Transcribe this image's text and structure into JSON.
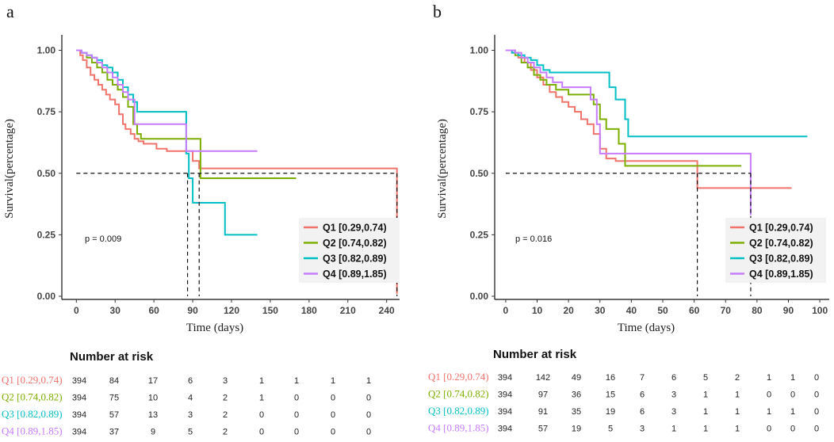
{
  "colors": {
    "Q1": "#F0736C",
    "Q2": "#7CAE00",
    "Q3": "#00BFC4",
    "Q4": "#C77CFF"
  },
  "chart_data": [
    {
      "panel": "a",
      "type": "line",
      "subtype": "kaplan-meier",
      "xlabel": "Time (days)",
      "ylabel": "Survival(percentage)",
      "xlim": [
        -10,
        250
      ],
      "ylim": [
        0,
        1.05
      ],
      "xticks": [
        0,
        30,
        60,
        90,
        120,
        150,
        180,
        210,
        240
      ],
      "yticks": [
        0,
        0.25,
        0.5,
        0.75,
        1
      ],
      "ytick_labels": [
        "0.00",
        "0.25",
        "0.50",
        "0.75",
        "1.00"
      ],
      "pvalue": "p = 0.009",
      "median_line": {
        "y": 0.5,
        "x_end": 248,
        "medians": [
          86,
          95,
          248
        ]
      },
      "series": [
        {
          "name": "Q1 [0.29,0.74)",
          "key": "Q1",
          "x": [
            0,
            3,
            5,
            8,
            11,
            14,
            17,
            20,
            23,
            26,
            30,
            33,
            36,
            38,
            42,
            45,
            48,
            52,
            62,
            70,
            85,
            90,
            95,
            248,
            248
          ],
          "y": [
            1,
            0.98,
            0.96,
            0.93,
            0.9,
            0.88,
            0.86,
            0.84,
            0.82,
            0.8,
            0.78,
            0.74,
            0.7,
            0.68,
            0.66,
            0.64,
            0.63,
            0.62,
            0.6,
            0.59,
            0.59,
            0.55,
            0.52,
            0.52,
            0.01
          ]
        },
        {
          "name": "Q2 [0.74,0.82)",
          "key": "Q2",
          "x": [
            0,
            4,
            8,
            12,
            16,
            20,
            24,
            28,
            32,
            36,
            40,
            44,
            47,
            50,
            55,
            60,
            70,
            80,
            94,
            96,
            170
          ],
          "y": [
            1,
            0.99,
            0.97,
            0.95,
            0.93,
            0.91,
            0.88,
            0.86,
            0.84,
            0.81,
            0.77,
            0.7,
            0.66,
            0.64,
            0.64,
            0.64,
            0.64,
            0.64,
            0.64,
            0.48,
            0.48
          ]
        },
        {
          "name": "Q3 [0.82,0.89)",
          "key": "Q3",
          "x": [
            0,
            4,
            8,
            12,
            16,
            20,
            24,
            28,
            32,
            36,
            40,
            44,
            47,
            60,
            70,
            80,
            85,
            87,
            90,
            95,
            105,
            110,
            115,
            120,
            140
          ],
          "y": [
            1,
            0.99,
            0.98,
            0.97,
            0.96,
            0.94,
            0.93,
            0.91,
            0.88,
            0.85,
            0.82,
            0.79,
            0.75,
            0.75,
            0.75,
            0.75,
            0.58,
            0.48,
            0.38,
            0.38,
            0.38,
            0.38,
            0.25,
            0.25,
            0.25
          ]
        },
        {
          "name": "Q4 [0.89,1.85)",
          "key": "Q4",
          "x": [
            0,
            4,
            8,
            12,
            16,
            20,
            24,
            28,
            32,
            36,
            40,
            45,
            50,
            60,
            70,
            80,
            85,
            90,
            100,
            120,
            140
          ],
          "y": [
            1,
            0.99,
            0.98,
            0.97,
            0.95,
            0.93,
            0.91,
            0.89,
            0.86,
            0.83,
            0.8,
            0.7,
            0.7,
            0.7,
            0.7,
            0.7,
            0.59,
            0.59,
            0.59,
            0.59,
            0.59
          ]
        }
      ],
      "risk_table": {
        "title": "Number at risk",
        "rows": [
          {
            "key": "Q1",
            "label": "Q1 [0.29,0.74)",
            "values": [
              "394",
              "84",
              "17",
              "6",
              "3",
              "1",
              "1",
              "1",
              "1"
            ]
          },
          {
            "key": "Q2",
            "label": "Q2 [0.74,0.82)",
            "values": [
              "394",
              "75",
              "10",
              "4",
              "2",
              "1",
              "0",
              "0",
              "0"
            ]
          },
          {
            "key": "Q3",
            "label": "Q3 [0.82,0.89)",
            "values": [
              "394",
              "57",
              "13",
              "3",
              "2",
              "0",
              "0",
              "0",
              "0"
            ]
          },
          {
            "key": "Q4",
            "label": "Q4 [0.89,1.85)",
            "values": [
              "394",
              "37",
              "9",
              "5",
              "2",
              "0",
              "0",
              "0",
              "0"
            ]
          }
        ]
      }
    },
    {
      "panel": "b",
      "type": "line",
      "subtype": "kaplan-meier",
      "xlabel": "Time (days)",
      "ylabel": "Survival(percentage)",
      "xlim": [
        -3,
        103
      ],
      "ylim": [
        0,
        1.05
      ],
      "xticks": [
        0,
        10,
        20,
        30,
        40,
        50,
        60,
        70,
        80,
        90,
        100
      ],
      "yticks": [
        0,
        0.25,
        0.5,
        0.75,
        1
      ],
      "ytick_labels": [
        "0.00",
        "0.25",
        "0.50",
        "0.75",
        "1.00"
      ],
      "pvalue": "p = 0.016",
      "median_line": {
        "y": 0.5,
        "x_end": 78,
        "medians": [
          61,
          78
        ]
      },
      "series": [
        {
          "name": "Q1 [0.29,0.74)",
          "key": "Q1",
          "x": [
            0,
            2,
            4,
            6,
            8,
            10,
            12,
            14,
            16,
            18,
            20,
            22,
            24,
            26,
            28,
            30,
            32,
            35,
            40,
            45,
            50,
            55,
            60,
            61,
            63,
            91
          ],
          "y": [
            1,
            0.99,
            0.97,
            0.95,
            0.92,
            0.89,
            0.86,
            0.83,
            0.81,
            0.79,
            0.77,
            0.75,
            0.72,
            0.7,
            0.66,
            0.6,
            0.56,
            0.55,
            0.55,
            0.55,
            0.55,
            0.55,
            0.55,
            0.44,
            0.44,
            0.44
          ]
        },
        {
          "name": "Q2 [0.74,0.82)",
          "key": "Q2",
          "x": [
            0,
            3,
            5,
            7,
            9,
            11,
            13,
            16,
            20,
            25,
            28,
            30,
            32,
            34,
            36,
            38,
            40,
            45,
            50,
            60,
            70,
            75
          ],
          "y": [
            1,
            0.98,
            0.95,
            0.93,
            0.9,
            0.88,
            0.86,
            0.84,
            0.82,
            0.82,
            0.78,
            0.72,
            0.68,
            0.68,
            0.62,
            0.53,
            0.53,
            0.53,
            0.53,
            0.53,
            0.53,
            0.53
          ]
        },
        {
          "name": "Q3 [0.82,0.89)",
          "key": "Q3",
          "x": [
            0,
            2,
            4,
            6,
            8,
            10,
            12,
            14,
            16,
            18,
            20,
            25,
            30,
            33,
            35,
            36,
            38,
            39,
            40,
            50,
            60,
            70,
            80,
            96
          ],
          "y": [
            1,
            0.99,
            0.98,
            0.97,
            0.96,
            0.94,
            0.92,
            0.91,
            0.91,
            0.91,
            0.91,
            0.91,
            0.91,
            0.85,
            0.8,
            0.8,
            0.72,
            0.65,
            0.65,
            0.65,
            0.65,
            0.65,
            0.65,
            0.65
          ]
        },
        {
          "name": "Q4 [0.89,1.85)",
          "key": "Q4",
          "x": [
            0,
            3,
            5,
            7,
            9,
            11,
            13,
            15,
            18,
            22,
            25,
            27,
            29,
            30,
            32,
            35,
            40,
            50,
            60,
            70,
            78,
            78
          ],
          "y": [
            1,
            0.99,
            0.97,
            0.95,
            0.93,
            0.91,
            0.89,
            0.87,
            0.85,
            0.85,
            0.85,
            0.8,
            0.7,
            0.58,
            0.58,
            0.58,
            0.58,
            0.58,
            0.58,
            0.58,
            0.58,
            0.33
          ]
        }
      ],
      "risk_table": {
        "title": "Number at risk",
        "rows": [
          {
            "key": "Q1",
            "label": "Q1 [0.29,0.74)",
            "values": [
              "394",
              "142",
              "49",
              "16",
              "7",
              "6",
              "5",
              "2",
              "1",
              "1",
              "0"
            ]
          },
          {
            "key": "Q2",
            "label": "Q2 [0.74,0.82)",
            "values": [
              "394",
              "97",
              "36",
              "15",
              "6",
              "3",
              "1",
              "1",
              "0",
              "0",
              "0"
            ]
          },
          {
            "key": "Q3",
            "label": "Q3 [0.82,0.89)",
            "values": [
              "394",
              "91",
              "35",
              "19",
              "6",
              "3",
              "1",
              "1",
              "1",
              "1",
              "0"
            ]
          },
          {
            "key": "Q4",
            "label": "Q4 [0.89,1.85)",
            "values": [
              "394",
              "57",
              "19",
              "5",
              "3",
              "1",
              "1",
              "1",
              "0",
              "0",
              "0"
            ]
          }
        ]
      }
    }
  ]
}
